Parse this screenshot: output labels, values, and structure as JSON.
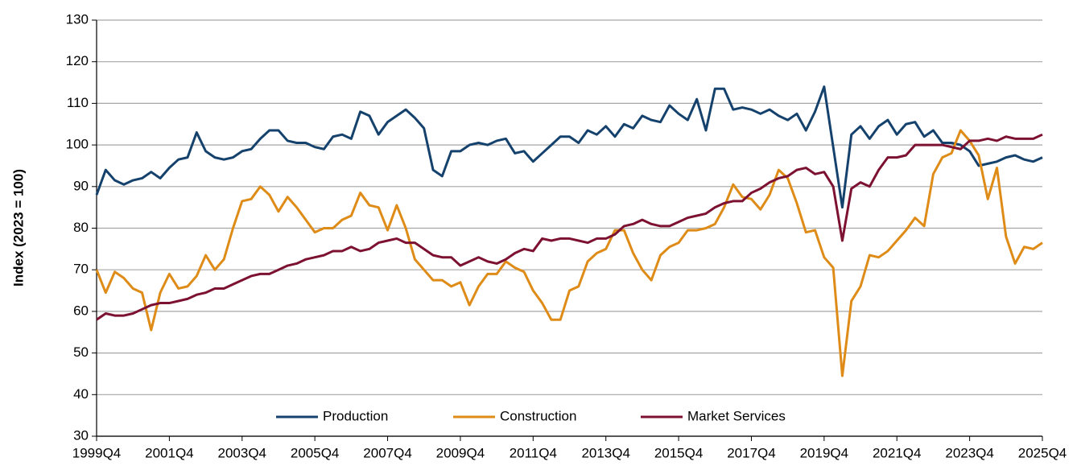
{
  "chart_data": {
    "type": "line",
    "ylabel": "Index (2023 = 100)",
    "categories": [
      "1999Q4",
      null,
      null,
      null,
      null,
      null,
      null,
      null,
      "2001Q4",
      null,
      null,
      null,
      null,
      null,
      null,
      null,
      "2003Q4",
      null,
      null,
      null,
      null,
      null,
      null,
      null,
      "2005Q4",
      null,
      null,
      null,
      null,
      null,
      null,
      null,
      "2007Q4",
      null,
      null,
      null,
      null,
      null,
      null,
      null,
      "2009Q4",
      null,
      null,
      null,
      null,
      null,
      null,
      null,
      "2011Q4",
      null,
      null,
      null,
      null,
      null,
      null,
      null,
      "2013Q4",
      null,
      null,
      null,
      null,
      null,
      null,
      null,
      "2015Q4",
      null,
      null,
      null,
      null,
      null,
      null,
      null,
      "2017Q4",
      null,
      null,
      null,
      null,
      null,
      null,
      null,
      "2019Q4",
      null,
      null,
      null,
      null,
      null,
      null,
      null,
      "2021Q4",
      null,
      null,
      null,
      null,
      null,
      null,
      null,
      "2023Q4",
      null,
      null,
      null,
      null,
      null,
      null,
      null,
      "2025Q4"
    ],
    "series": [
      {
        "name": "Production",
        "color": "#15426d",
        "values": [
          88,
          94,
          91.5,
          90.5,
          91.5,
          92,
          93.5,
          92,
          94.5,
          96.5,
          97,
          103,
          98.5,
          97,
          96.5,
          97,
          98.5,
          99,
          101.5,
          103.5,
          103.5,
          101,
          100.5,
          100.5,
          99.5,
          99,
          102,
          102.5,
          101.5,
          108,
          107,
          102.5,
          105.5,
          107,
          108.5,
          106.5,
          104,
          94,
          92.5,
          98.5,
          98.5,
          100,
          100.5,
          100,
          101,
          101.5,
          98,
          98.5,
          96,
          98,
          100,
          102,
          102,
          100.5,
          103.5,
          102.5,
          104.5,
          102,
          105,
          104,
          107,
          106,
          105.5,
          109.5,
          107.5,
          106,
          111,
          103.5,
          113.5,
          113.5,
          108.5,
          109,
          108.5,
          107.5,
          108.5,
          107,
          106,
          107.5,
          103.5,
          108,
          114,
          99.5,
          85,
          102.5,
          104.5,
          101.5,
          104.5,
          106,
          102.5,
          105,
          105.5,
          102,
          103.5,
          100.5,
          100.5,
          100,
          98.5,
          95,
          95.5,
          96,
          97,
          97.5,
          96.5,
          96,
          97
        ]
      },
      {
        "name": "Construction",
        "color": "#de8b17",
        "values": [
          70,
          64.5,
          69.5,
          68,
          65.5,
          64.5,
          55.5,
          64.5,
          69,
          65.5,
          66,
          68.5,
          73.5,
          70,
          72.5,
          80,
          86.5,
          87,
          90,
          88,
          84,
          87.5,
          85,
          82,
          79,
          80,
          80,
          82,
          83,
          88.5,
          85.5,
          85,
          79.5,
          85.5,
          80,
          72.5,
          70,
          67.5,
          67.5,
          66,
          67,
          61.5,
          66,
          69,
          69,
          72,
          70.5,
          69.5,
          65,
          62,
          58,
          58,
          65,
          66,
          72,
          74,
          75,
          79.5,
          79.5,
          74,
          70,
          67.5,
          73.5,
          75.5,
          76.5,
          79.5,
          79.5,
          80,
          81,
          85,
          90.5,
          87.5,
          87,
          84.5,
          88,
          94,
          92,
          86,
          79,
          79.5,
          73,
          70.5,
          44.5,
          62.5,
          66,
          73.5,
          73,
          74.5,
          77,
          79.5,
          82.5,
          80.5,
          93,
          97,
          98,
          103.5,
          101,
          97.5,
          87,
          94.5,
          78,
          71.5,
          75.5,
          75,
          76.5
        ]
      },
      {
        "name": "Market Services",
        "color": "#7c1131",
        "values": [
          58,
          59.5,
          59,
          59,
          59.5,
          60.5,
          61.5,
          62,
          62,
          62.5,
          63,
          64,
          64.5,
          65.5,
          65.5,
          66.5,
          67.5,
          68.5,
          69,
          69,
          70,
          71,
          71.5,
          72.5,
          73,
          73.5,
          74.5,
          74.5,
          75.5,
          74.5,
          75,
          76.5,
          77,
          77.5,
          76.5,
          76.5,
          75,
          73.5,
          73,
          73,
          71,
          72,
          73,
          72,
          71.5,
          72.5,
          74,
          75,
          74.5,
          77.5,
          77,
          77.5,
          77.5,
          77,
          76.5,
          77.5,
          77.5,
          78.5,
          80.5,
          81,
          82,
          81,
          80.5,
          80.5,
          81.5,
          82.5,
          83,
          83.5,
          85,
          86,
          86.5,
          86.5,
          88.5,
          89.5,
          91,
          92,
          92.5,
          94,
          94.5,
          93,
          93.5,
          90,
          77,
          89.5,
          91,
          90,
          94,
          97,
          97,
          97.5,
          100,
          100,
          100,
          100,
          99.5,
          99,
          101,
          101,
          101.5,
          101,
          102,
          101.5,
          101.5,
          101.5,
          102.5
        ]
      }
    ],
    "ylim": [
      30,
      130
    ],
    "yticks": [
      30,
      40,
      50,
      60,
      70,
      80,
      90,
      100,
      110,
      120,
      130
    ],
    "grid": true,
    "legend": "bottom"
  }
}
